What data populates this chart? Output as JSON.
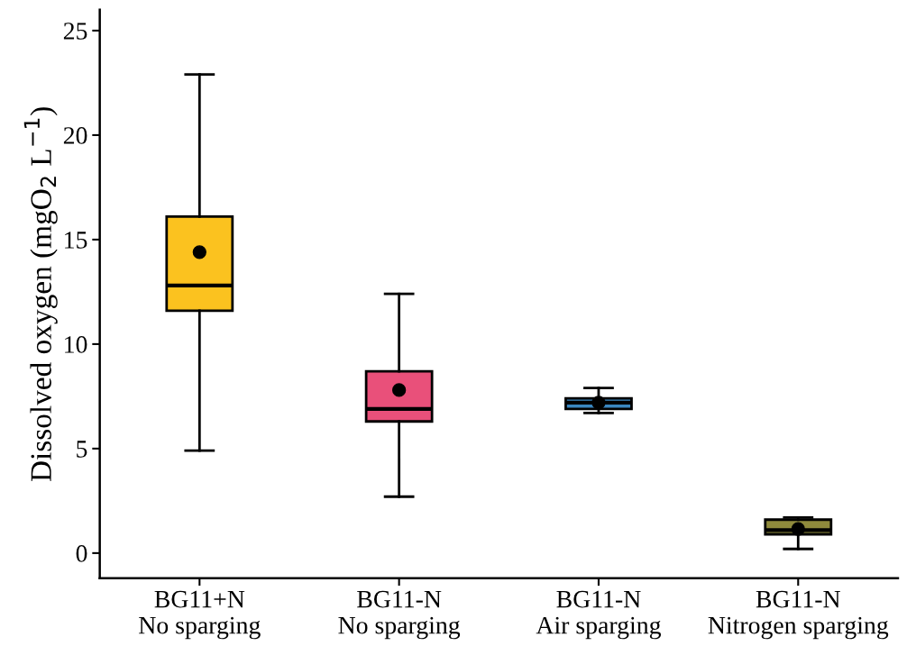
{
  "chart_data": {
    "type": "box",
    "ylabel": "Dissolved oxygen (mgO$_{2}$ L$^{−1}$)",
    "categories": [
      "BG11+N\nNo sparging",
      "BG11-N\nNo sparging",
      "BG11-N\nAir sparging",
      "BG11-N\nNitrogen sparging"
    ],
    "colors": [
      "#fbc21f",
      "#e9507a",
      "#3a86c0",
      "#8f8a3c"
    ],
    "boxes": [
      {
        "low": 4.9,
        "q1": 11.6,
        "median": 12.8,
        "q3": 16.1,
        "high": 22.9,
        "mean": 14.4
      },
      {
        "low": 2.7,
        "q1": 6.3,
        "median": 6.9,
        "q3": 8.7,
        "high": 12.4,
        "mean": 7.8
      },
      {
        "low": 6.7,
        "q1": 6.9,
        "median": 7.2,
        "q3": 7.4,
        "high": 7.9,
        "mean": 7.2
      },
      {
        "low": 0.2,
        "q1": 0.9,
        "median": 1.1,
        "q3": 1.6,
        "high": 1.7,
        "mean": 1.15
      }
    ],
    "ylim": [
      -1.2,
      26
    ],
    "yticks": [
      0,
      5,
      10,
      15,
      20,
      25
    ],
    "grid": false
  }
}
